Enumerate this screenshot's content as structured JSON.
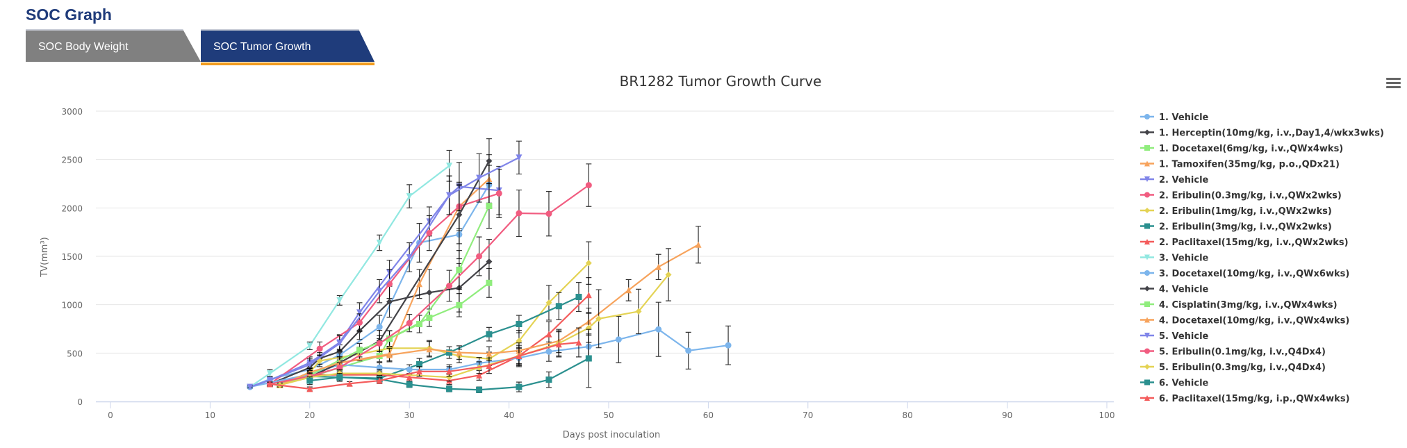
{
  "header": {
    "title": "SOC Graph"
  },
  "tabs": [
    {
      "label": "SOC Body Weight",
      "active": false
    },
    {
      "label": "SOC Tumor Growth",
      "active": true
    }
  ],
  "colors": {
    "title": "#1f3b7a",
    "active_tab": "#1f3c7b",
    "inactive_tab": "#808080",
    "tab_underline": "#f29c1f"
  },
  "menu_icon": "hamburger-menu-icon",
  "chart_data": {
    "type": "line",
    "title": "BR1282 Tumor Growth Curve",
    "xlabel": "Days post inoculation",
    "ylabel": "TV(mm³)",
    "xlim": [
      0,
      100
    ],
    "ylim": [
      0,
      3000
    ],
    "xticks": [
      0,
      10,
      20,
      30,
      40,
      50,
      60,
      70,
      80,
      90,
      100
    ],
    "yticks": [
      0,
      500,
      1000,
      1500,
      2000,
      2500,
      3000
    ],
    "grid": "horizontal",
    "legend": "right",
    "error_bars": true,
    "point_format": "[day, mean TV, error]",
    "series": [
      {
        "name": "1. Vehicle",
        "color": "#7cb5ec",
        "marker": "circle",
        "points": [
          [
            14,
            150,
            10
          ],
          [
            16,
            230,
            30
          ],
          [
            20,
            330,
            50
          ],
          [
            23,
            480,
            60
          ],
          [
            27,
            770,
            120
          ],
          [
            31,
            1640,
            200
          ],
          [
            35,
            1725,
            250
          ],
          [
            38,
            2240,
            200
          ]
        ]
      },
      {
        "name": "1. Herceptin(10mg/kg, i.v.,Day1,4/wkx3wks)",
        "color": "#434348",
        "marker": "diamond",
        "points": [
          [
            16,
            180,
            20
          ],
          [
            20,
            350,
            50
          ],
          [
            21,
            445,
            60
          ],
          [
            23,
            515,
            70
          ],
          [
            25,
            730,
            90
          ],
          [
            28,
            1030,
            160
          ],
          [
            32,
            1125,
            240
          ],
          [
            35,
            1175,
            250
          ],
          [
            38,
            1445,
            230
          ]
        ]
      },
      {
        "name": "1. Docetaxel(6mg/kg, i.v.,QWx4wks)",
        "color": "#90ed7d",
        "marker": "square",
        "points": [
          [
            17,
            170,
            20
          ],
          [
            20,
            250,
            40
          ],
          [
            23,
            350,
            50
          ],
          [
            27,
            470,
            60
          ],
          [
            28,
            650,
            80
          ],
          [
            32,
            865,
            90
          ],
          [
            35,
            995,
            120
          ],
          [
            38,
            1225,
            150
          ]
        ]
      },
      {
        "name": "1. Tamoxifen(35mg/kg, p.o.,QDx21)",
        "color": "#f7a35c",
        "marker": "triangle",
        "points": [
          [
            17,
            170,
            20
          ],
          [
            20,
            250,
            40
          ],
          [
            23,
            400,
            60
          ],
          [
            28,
            490,
            70
          ],
          [
            31,
            1215,
            150
          ],
          [
            35,
            2015,
            250
          ],
          [
            38,
            2300,
            250
          ]
        ]
      },
      {
        "name": "2. Vehicle",
        "color": "#8085e9",
        "marker": "triangle-down",
        "points": [
          [
            14,
            150,
            10
          ],
          [
            16,
            220,
            30
          ],
          [
            20,
            400,
            60
          ],
          [
            23,
            610,
            80
          ],
          [
            25,
            920,
            100
          ],
          [
            28,
            1330,
            130
          ],
          [
            32,
            1860,
            150
          ],
          [
            34,
            2130,
            200
          ],
          [
            35,
            2220,
            250
          ],
          [
            39,
            2180,
            250
          ]
        ]
      },
      {
        "name": "2. Eribulin(0.3mg/kg, i.v.,QWx2wks)",
        "color": "#f15c80",
        "marker": "circle",
        "points": [
          [
            16,
            180,
            20
          ],
          [
            21,
            545,
            70
          ],
          [
            25,
            815,
            90
          ],
          [
            28,
            1215,
            150
          ],
          [
            32,
            1740,
            180
          ],
          [
            35,
            2015,
            230
          ],
          [
            39,
            2150,
            250
          ]
        ]
      },
      {
        "name": "2. Eribulin(1mg/kg, i.v.,QWx2wks)",
        "color": "#e4d354",
        "marker": "diamond",
        "points": [
          [
            17,
            170,
            20
          ],
          [
            20,
            300,
            40
          ],
          [
            21,
            420,
            60
          ],
          [
            25,
            490,
            70
          ],
          [
            28,
            550,
            80
          ],
          [
            32,
            550,
            80
          ],
          [
            35,
            470,
            70
          ],
          [
            38,
            440,
            70
          ],
          [
            41,
            625,
            110
          ],
          [
            44,
            1020,
            180
          ],
          [
            48,
            1430,
            220
          ]
        ]
      },
      {
        "name": "2. Eribulin(3mg/kg, i.v.,QWx2wks)",
        "color": "#2b908f",
        "marker": "square",
        "points": [
          [
            16,
            180,
            20
          ],
          [
            20,
            260,
            40
          ],
          [
            23,
            250,
            40
          ],
          [
            27,
            240,
            40
          ],
          [
            31,
            385,
            60
          ],
          [
            34,
            505,
            60
          ],
          [
            38,
            695,
            70
          ],
          [
            41,
            800,
            90
          ],
          [
            45,
            985,
            140
          ],
          [
            47,
            1080,
            150
          ]
        ]
      },
      {
        "name": "2. Paclitaxel(15mg/kg, i.v.,QWx2wks)",
        "color": "#f45b5b",
        "marker": "triangle",
        "points": [
          [
            16,
            180,
            20
          ],
          [
            20,
            275,
            40
          ],
          [
            23,
            275,
            40
          ],
          [
            27,
            275,
            40
          ],
          [
            30,
            250,
            40
          ],
          [
            34,
            215,
            40
          ],
          [
            37,
            270,
            50
          ],
          [
            41,
            470,
            80
          ],
          [
            44,
            695,
            130
          ],
          [
            48,
            1100,
            180
          ]
        ]
      },
      {
        "name": "3. Vehicle",
        "color": "#91e8e1",
        "marker": "triangle-down",
        "points": [
          [
            14,
            150,
            10
          ],
          [
            16,
            290,
            40
          ],
          [
            20,
            575,
            40
          ],
          [
            23,
            1045,
            50
          ],
          [
            27,
            1640,
            80
          ],
          [
            30,
            2120,
            120
          ],
          [
            34,
            2435,
            160
          ]
        ]
      },
      {
        "name": "3. Docetaxel(10mg/kg, i.v.,QWx6wks)",
        "color": "#7cb5ec",
        "marker": "circle",
        "points": [
          [
            14,
            150,
            10
          ],
          [
            20,
            280,
            40
          ],
          [
            23,
            380,
            50
          ],
          [
            27,
            350,
            50
          ],
          [
            30,
            330,
            50
          ],
          [
            34,
            330,
            50
          ],
          [
            37,
            395,
            60
          ],
          [
            41,
            450,
            80
          ],
          [
            44,
            515,
            100
          ],
          [
            48,
            567,
            130
          ],
          [
            51,
            640,
            240
          ],
          [
            55,
            745,
            280
          ],
          [
            58,
            525,
            190
          ],
          [
            62,
            580,
            200
          ]
        ]
      },
      {
        "name": "4. Vehicle",
        "color": "#434348",
        "marker": "diamond",
        "points": [
          [
            17,
            180,
            20
          ],
          [
            20,
            250,
            40
          ],
          [
            23,
            400,
            60
          ],
          [
            27,
            625,
            110
          ],
          [
            35,
            1930,
            300
          ],
          [
            38,
            2485,
            230
          ]
        ]
      },
      {
        "name": "4. Cisplatin(3mg/kg, i.v.,QWx4wks)",
        "color": "#90ed7d",
        "marker": "square",
        "points": [
          [
            17,
            170,
            20
          ],
          [
            20,
            270,
            40
          ],
          [
            25,
            530,
            70
          ],
          [
            28,
            650,
            80
          ],
          [
            31,
            800,
            90
          ],
          [
            35,
            1360,
            200
          ],
          [
            38,
            2020,
            230
          ]
        ]
      },
      {
        "name": "4. Docetaxel(10mg/kg, i.v.,QWx4wks)",
        "color": "#f7a35c",
        "marker": "triangle",
        "points": [
          [
            17,
            170,
            20
          ],
          [
            20,
            300,
            40
          ],
          [
            23,
            400,
            60
          ],
          [
            28,
            480,
            70
          ],
          [
            32,
            540,
            80
          ],
          [
            35,
            505,
            70
          ],
          [
            38,
            495,
            70
          ],
          [
            41,
            525,
            80
          ],
          [
            45,
            625,
            120
          ],
          [
            48,
            825,
            140
          ],
          [
            52,
            1150,
            110
          ],
          [
            55,
            1390,
            130
          ],
          [
            59,
            1620,
            190
          ]
        ]
      },
      {
        "name": "5. Vehicle",
        "color": "#8085e9",
        "marker": "triangle-down",
        "points": [
          [
            14,
            150,
            10
          ],
          [
            16,
            220,
            30
          ],
          [
            20,
            380,
            60
          ],
          [
            23,
            600,
            80
          ],
          [
            27,
            1140,
            120
          ],
          [
            30,
            1490,
            150
          ],
          [
            34,
            2130,
            200
          ],
          [
            37,
            2310,
            250
          ],
          [
            41,
            2520,
            170
          ]
        ]
      },
      {
        "name": "5. Eribulin(0.1mg/kg, i.v.,Q4Dx4)",
        "color": "#f15c80",
        "marker": "circle",
        "points": [
          [
            16,
            180,
            20
          ],
          [
            20,
            260,
            40
          ],
          [
            23,
            350,
            50
          ],
          [
            27,
            600,
            80
          ],
          [
            30,
            810,
            90
          ],
          [
            34,
            1195,
            160
          ],
          [
            37,
            1500,
            200
          ],
          [
            41,
            1945,
            240
          ],
          [
            44,
            1940,
            230
          ],
          [
            48,
            2235,
            220
          ]
        ]
      },
      {
        "name": "5. Eribulin(0.3mg/kg, i.v.,Q4Dx4)",
        "color": "#e4d354",
        "marker": "diamond",
        "points": [
          [
            17,
            170,
            20
          ],
          [
            20,
            250,
            40
          ],
          [
            23,
            290,
            40
          ],
          [
            27,
            290,
            40
          ],
          [
            34,
            250,
            40
          ],
          [
            37,
            350,
            60
          ],
          [
            41,
            470,
            90
          ],
          [
            45,
            600,
            130
          ],
          [
            48,
            760,
            150
          ],
          [
            49,
            855,
            300
          ],
          [
            53,
            930,
            230
          ],
          [
            56,
            1310,
            270
          ]
        ]
      },
      {
        "name": "6. Vehicle",
        "color": "#2b908f",
        "marker": "square",
        "points": [
          [
            20,
            215,
            40
          ],
          [
            23,
            250,
            40
          ],
          [
            27,
            230,
            40
          ],
          [
            30,
            175,
            30
          ],
          [
            34,
            130,
            30
          ],
          [
            37,
            120,
            30
          ],
          [
            41,
            150,
            50
          ],
          [
            44,
            225,
            80
          ],
          [
            48,
            445,
            300
          ]
        ]
      },
      {
        "name": "6. Paclitaxel(15mg/kg, i.p.,QWx4wks)",
        "color": "#f45b5b",
        "marker": "triangle",
        "points": [
          [
            16,
            180,
            20
          ],
          [
            20,
            130,
            20
          ],
          [
            24,
            185,
            20
          ],
          [
            27,
            215,
            30
          ],
          [
            31,
            310,
            50
          ],
          [
            34,
            310,
            50
          ],
          [
            38,
            370,
            80
          ],
          [
            41,
            470,
            110
          ],
          [
            45,
            590,
            130
          ],
          [
            47,
            610,
            150
          ]
        ]
      }
    ]
  }
}
